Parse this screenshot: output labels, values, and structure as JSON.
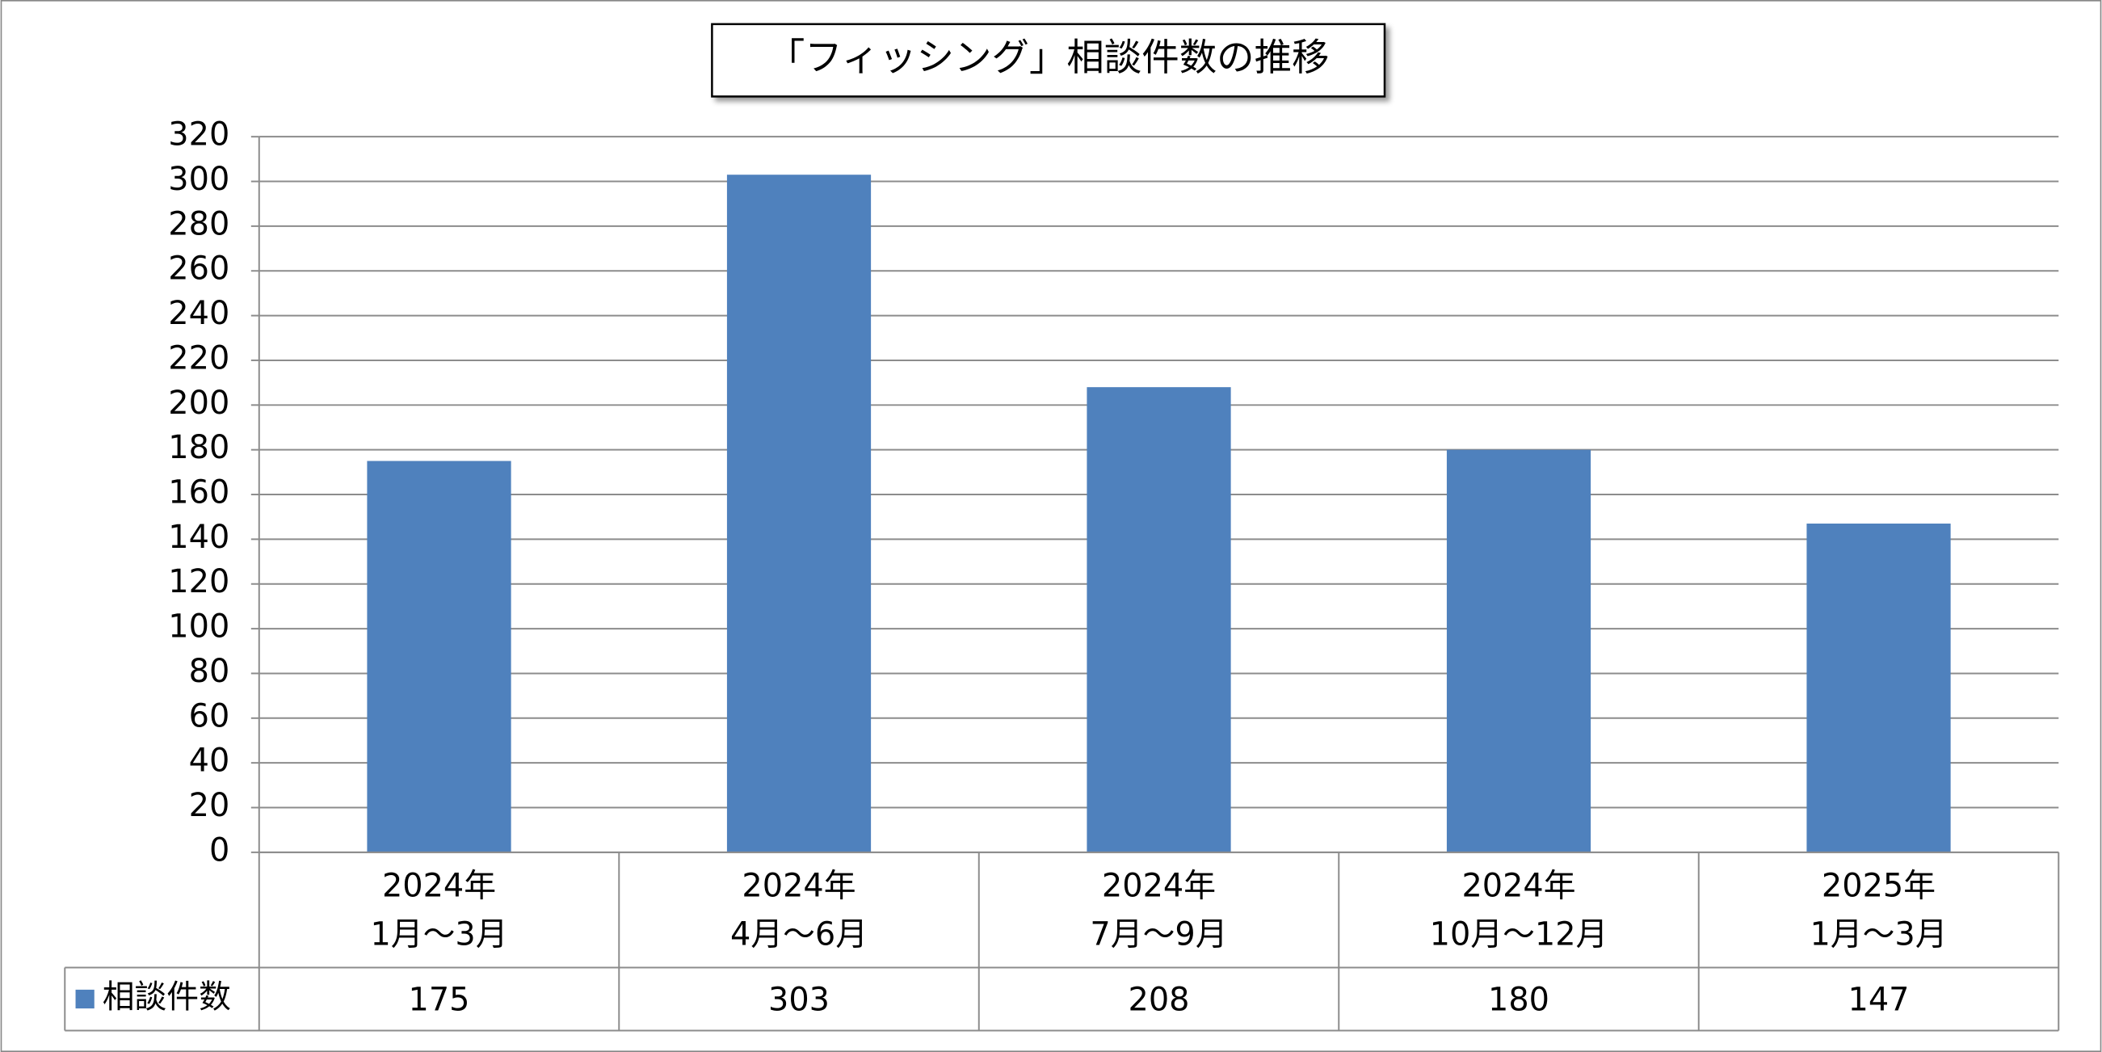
{
  "chart_data": {
    "type": "bar",
    "title": "「フィッシング」相談件数の推移",
    "categories": [
      "2024年\n1月～3月",
      "2024年\n4月～6月",
      "2024年\n7月～9月",
      "2024年\n10月～12月",
      "2025年\n1月～3月"
    ],
    "series": [
      {
        "name": "相談件数",
        "color": "#4f81bd",
        "values": [
          175,
          303,
          208,
          180,
          147
        ]
      }
    ],
    "ylim": [
      0,
      320
    ],
    "yticks": [
      0,
      20,
      40,
      60,
      80,
      100,
      120,
      140,
      160,
      180,
      200,
      220,
      240,
      260,
      280,
      300,
      320
    ],
    "grid": true,
    "data_table": true
  }
}
